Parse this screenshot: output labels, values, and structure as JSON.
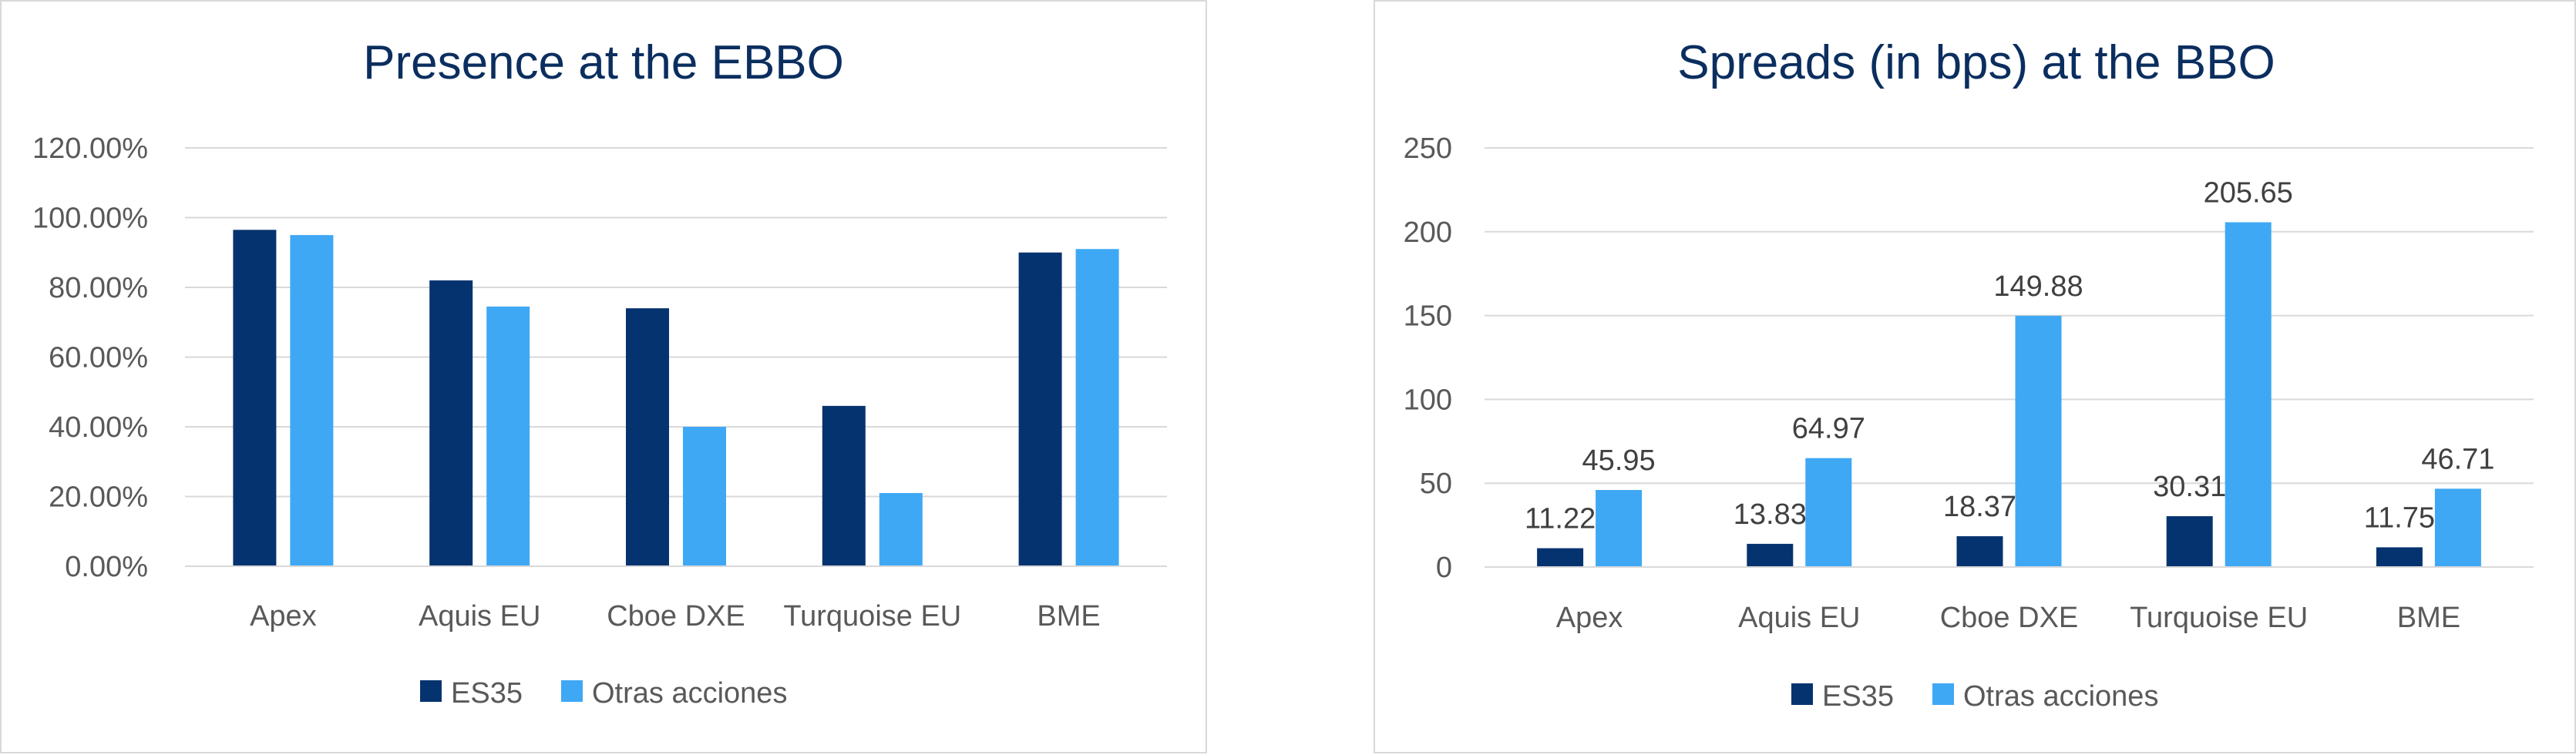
{
  "chart_data": [
    {
      "type": "bar",
      "title": "Presence at the EBBO",
      "categories": [
        "Apex",
        "Aquis EU",
        "Cboe DXE",
        "Turquoise EU",
        "BME"
      ],
      "series": [
        {
          "name": "ES35",
          "values": [
            96.5,
            82.0,
            74.0,
            46.0,
            90.0
          ],
          "color": "#05336f"
        },
        {
          "name": "Otras acciones",
          "values": [
            95.0,
            74.5,
            40.0,
            21.0,
            91.0
          ],
          "color": "#3fa8f4"
        }
      ],
      "ylim": [
        0,
        120
      ],
      "yticks": [
        0,
        20,
        40,
        60,
        80,
        100,
        120
      ],
      "ytick_labels": [
        "0.00%",
        "20.00%",
        "40.00%",
        "60.00%",
        "80.00%",
        "100.00%",
        "120.00%"
      ],
      "data_labels": false,
      "grid": true,
      "legend": "bottom",
      "xlabel": "",
      "ylabel": ""
    },
    {
      "type": "bar",
      "title": "Spreads (in bps) at the BBO",
      "categories": [
        "Apex",
        "Aquis EU",
        "Cboe DXE",
        "Turquoise EU",
        "BME"
      ],
      "series": [
        {
          "name": "ES35",
          "values": [
            11.22,
            13.83,
            18.37,
            30.31,
            11.75
          ],
          "labels": [
            "11.22",
            "13.83",
            "18.37",
            "30.31",
            "11.75"
          ],
          "color": "#05336f"
        },
        {
          "name": "Otras acciones",
          "values": [
            45.95,
            64.97,
            149.88,
            205.65,
            46.71
          ],
          "labels": [
            "45.95",
            "64.97",
            "149.88",
            "205.65",
            "46.71"
          ],
          "color": "#3fa8f4"
        }
      ],
      "ylim": [
        0,
        250
      ],
      "yticks": [
        0,
        50,
        100,
        150,
        200,
        250
      ],
      "ytick_labels": [
        "0",
        "50",
        "100",
        "150",
        "200",
        "250"
      ],
      "data_labels": true,
      "grid": true,
      "legend": "bottom",
      "xlabel": "",
      "ylabel": ""
    }
  ]
}
